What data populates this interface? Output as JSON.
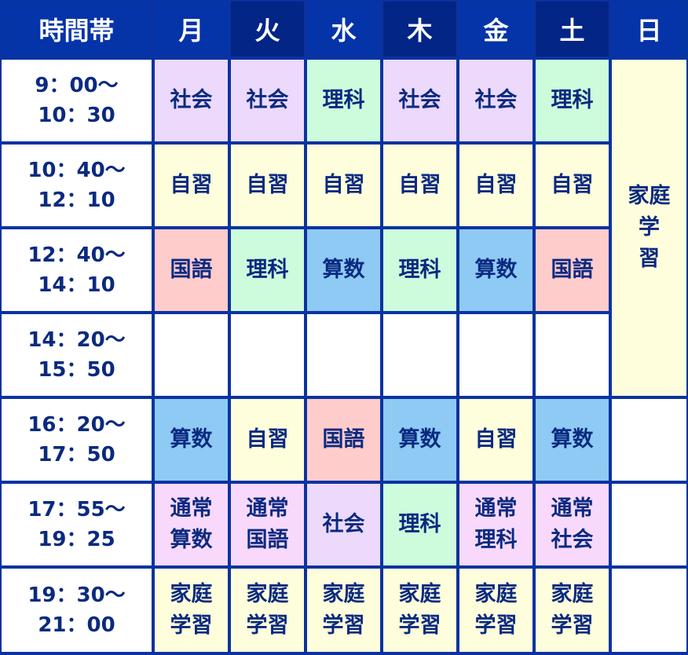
{
  "header": {
    "time_label": "時間帯",
    "days": [
      "月",
      "火",
      "水",
      "木",
      "金",
      "土",
      "日"
    ]
  },
  "colors": {
    "header_light": "#0533a8",
    "header_dark": "#032585",
    "grid": "#0a33a0",
    "text": "#0a2a80",
    "社会": "#ecd9fb",
    "理科": "#ccfcdc",
    "自習": "#fefedc",
    "国語": "#ffcccc",
    "算数": "#8ecaf4",
    "通常": "#f9d9fb",
    "家庭学習": "#fefedc",
    "empty": "#ffffff"
  },
  "rows": [
    {
      "time": [
        "9：00〜",
        "10：30"
      ],
      "cells": [
        "社会",
        "社会",
        "理科",
        "社会",
        "社会",
        "理科"
      ]
    },
    {
      "time": [
        "10：40〜",
        "12：10"
      ],
      "cells": [
        "自習",
        "自習",
        "自習",
        "自習",
        "自習",
        "自習"
      ]
    },
    {
      "time": [
        "12：40〜",
        "14：10"
      ],
      "cells": [
        "国語",
        "理科",
        "算数",
        "理科",
        "算数",
        "国語"
      ]
    },
    {
      "time": [
        "14：20〜",
        "15：50"
      ],
      "cells": [
        "",
        "",
        "",
        "",
        "",
        ""
      ]
    },
    {
      "time": [
        "16：20〜",
        "17：50"
      ],
      "cells": [
        "算数",
        "自習",
        "国語",
        "算数",
        "自習",
        "算数"
      ]
    },
    {
      "time": [
        "17：55〜",
        "19：25"
      ],
      "cells": [
        "通常\n算数",
        "通常\n国語",
        "社会",
        "理科",
        "通常\n理科",
        "通常\n社会"
      ]
    },
    {
      "time": [
        "19：30〜",
        "21：00"
      ],
      "cells": [
        "家庭\n学習",
        "家庭\n学習",
        "家庭\n学習",
        "家庭\n学習",
        "家庭\n学習",
        "家庭\n学習"
      ]
    }
  ],
  "sunday": {
    "span_label": "家庭\n学\n習",
    "rows_after": [
      "",
      "",
      ""
    ]
  }
}
